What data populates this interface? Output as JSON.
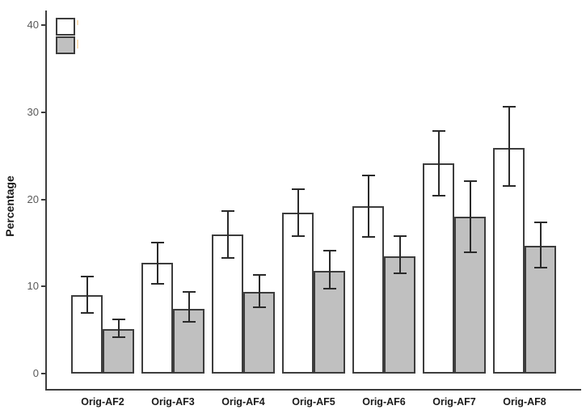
{
  "figure": {
    "background": "#ffffff"
  },
  "colors": {
    "bar_border": "#3d3d3d",
    "error_bar": "#2a2a2a",
    "axis_line": "#3d3d3d",
    "tick_mark": "#3d3d3d",
    "tick_label": "#595959",
    "category_label": "#1a1a1a",
    "axis_title": "#1a1a1a",
    "white_series_fill": "#ffffff",
    "gray_series_fill": "#c0c0c0"
  },
  "chart_data": {
    "type": "bar",
    "title": "",
    "xlabel": "",
    "ylabel": "Percentage",
    "grid": false,
    "error_bars": true,
    "legend_position": "top-left",
    "legend_swatches": [
      {
        "name": "white-series-swatch",
        "fill": "#ffffff",
        "label": ""
      },
      {
        "name": "gray-series-swatch",
        "fill": "#c0c0c0",
        "label": ""
      }
    ],
    "categories": [
      "Orig-AF2",
      "Orig-AF3",
      "Orig-AF4",
      "Orig-AF5",
      "Orig-AF6",
      "Orig-AF7",
      "Orig-AF8"
    ],
    "y_ticks": [
      0,
      10,
      20,
      30,
      40
    ],
    "ylim": [
      0,
      41.7
    ],
    "series": [
      {
        "name": "white-series",
        "fill": "#ffffff",
        "values": [
          9.0,
          12.7,
          16.0,
          18.5,
          19.2,
          24.1,
          25.9
        ],
        "error_low": [
          7.0,
          10.3,
          13.3,
          15.8,
          15.7,
          20.4,
          21.5
        ],
        "error_high": [
          11.1,
          15.0,
          18.7,
          21.2,
          22.7,
          27.8,
          30.6
        ]
      },
      {
        "name": "gray-series",
        "fill": "#c0c0c0",
        "values": [
          5.1,
          7.4,
          9.4,
          11.8,
          13.5,
          18.0,
          14.7
        ],
        "error_low": [
          4.2,
          5.9,
          7.6,
          9.7,
          11.5,
          13.9,
          12.2
        ],
        "error_high": [
          6.2,
          9.4,
          11.3,
          14.1,
          15.8,
          22.1,
          17.4
        ]
      }
    ]
  }
}
